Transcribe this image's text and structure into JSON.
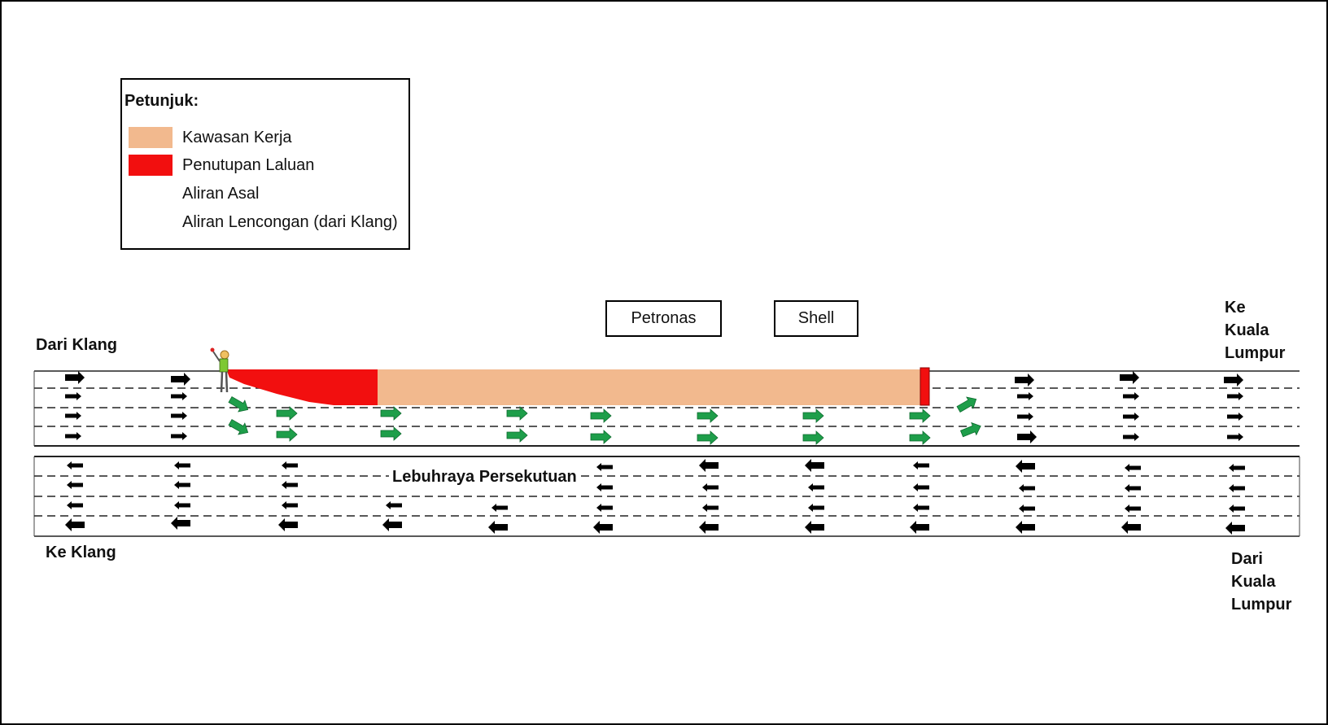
{
  "legend": {
    "title": "Petunjuk:",
    "items": [
      {
        "label": "Kawasan Kerja",
        "color": "#F2B98E",
        "kind": "area"
      },
      {
        "label": "Penutupan  Laluan",
        "color": "#F20F0F",
        "kind": "area"
      },
      {
        "label": "Aliran Asal",
        "color": "#000000",
        "kind": "arrow"
      },
      {
        "label": "Aliran Lencongan (dari Klang)",
        "color": "#1E9E4A",
        "kind": "arrow"
      }
    ]
  },
  "signs": {
    "petronas": "Petronas",
    "shell": "Shell"
  },
  "labels": {
    "dari_klang": "Dari Klang",
    "ke_klang": "Ke Klang",
    "ke_kl": [
      "Ke",
      "Kuala",
      "Lumpur"
    ],
    "dari_kl": [
      "Dari",
      "Kuala",
      "Lumpur"
    ],
    "road_name": "Lebuhraya Persekutuan"
  },
  "colors": {
    "work_zone": "#F2B98E",
    "closure": "#F20F0F",
    "original_flow": "#000000",
    "detour_flow": "#1E9E4A"
  }
}
